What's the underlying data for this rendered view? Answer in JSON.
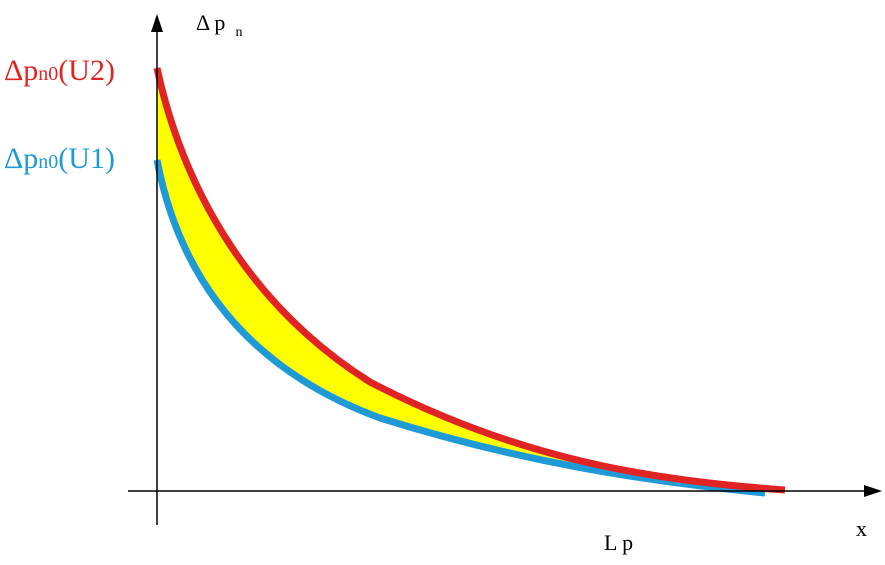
{
  "axes": {
    "y_label_main": "Δ p",
    "y_label_sub": "n",
    "x_label": "x",
    "x_marker": "L p"
  },
  "curves": {
    "upper": {
      "label_main": "Δp",
      "label_sub": "n0",
      "label_suffix": "(U2)",
      "color": "#e02424"
    },
    "lower": {
      "label_main": "Δp",
      "label_sub": "n0",
      "label_suffix": "(U1)",
      "color": "#1e9ad6"
    }
  },
  "fill_color": "#ffff00",
  "axis_color": "#000000"
}
